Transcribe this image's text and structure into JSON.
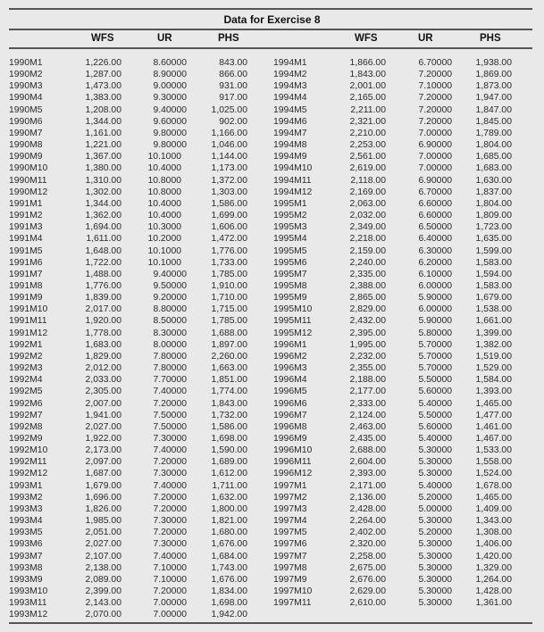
{
  "title": "Data for Exercise 8",
  "headers": [
    "WFS",
    "UR",
    "PHS"
  ],
  "left_rows": [
    [
      "1990M1",
      "1,226.00",
      "8.60000",
      "843.00"
    ],
    [
      "1990M2",
      "1,287.00",
      "8.90000",
      "866.00"
    ],
    [
      "1990M3",
      "1,473.00",
      "9.00000",
      "931.00"
    ],
    [
      "1990M4",
      "1,383.00",
      "9.30000",
      "917.00"
    ],
    [
      "1990M5",
      "1,208.00",
      "9.40000",
      "1,025.00"
    ],
    [
      "1990M6",
      "1,344.00",
      "9.60000",
      "902.00"
    ],
    [
      "1990M7",
      "1,161.00",
      "9.80000",
      "1,166.00"
    ],
    [
      "1990M8",
      "1,221.00",
      "9.80000",
      "1,046.00"
    ],
    [
      "1990M9",
      "1,367.00",
      "10.1000",
      "1,144.00"
    ],
    [
      "1990M10",
      "1,380.00",
      "10.4000",
      "1,173.00"
    ],
    [
      "1990M11",
      "1,310.00",
      "10.8000",
      "1,372.00"
    ],
    [
      "1990M12",
      "1,302.00",
      "10.8000",
      "1,303.00"
    ],
    [
      "1991M1",
      "1,344.00",
      "10.4000",
      "1,586.00"
    ],
    [
      "1991M2",
      "1,362.00",
      "10.4000",
      "1,699.00"
    ],
    [
      "1991M3",
      "1,694.00",
      "10.3000",
      "1,606.00"
    ],
    [
      "1991M4",
      "1,611.00",
      "10.2000",
      "1,472.00"
    ],
    [
      "1991M5",
      "1,648.00",
      "10.1000",
      "1,776.00"
    ],
    [
      "1991M6",
      "1,722.00",
      "10.1000",
      "1,733.00"
    ],
    [
      "1991M7",
      "1,488.00",
      "9.40000",
      "1,785.00"
    ],
    [
      "1991M8",
      "1,776.00",
      "9.50000",
      "1,910.00"
    ],
    [
      "1991M9",
      "1,839.00",
      "9.20000",
      "1,710.00"
    ],
    [
      "1991M10",
      "2,017.00",
      "8.80000",
      "1,715.00"
    ],
    [
      "1991M11",
      "1,920.00",
      "8.50000",
      "1,785.00"
    ],
    [
      "1991M12",
      "1,778.00",
      "8.30000",
      "1,688.00"
    ],
    [
      "1992M1",
      "1,683.00",
      "8.00000",
      "1,897.00"
    ],
    [
      "1992M2",
      "1,829.00",
      "7.80000",
      "2,260.00"
    ],
    [
      "1992M3",
      "2,012.00",
      "7.80000",
      "1,663.00"
    ],
    [
      "1992M4",
      "2,033.00",
      "7.70000",
      "1,851.00"
    ],
    [
      "1992M5",
      "2,305.00",
      "7.40000",
      "1,774.00"
    ],
    [
      "1992M6",
      "2,007.00",
      "7.20000",
      "1,843.00"
    ],
    [
      "1992M7",
      "1,941.00",
      "7.50000",
      "1,732.00"
    ],
    [
      "1992M8",
      "2,027.00",
      "7.50000",
      "1,586.00"
    ],
    [
      "1992M9",
      "1,922.00",
      "7.30000",
      "1,698.00"
    ],
    [
      "1992M10",
      "2,173.00",
      "7.40000",
      "1,590.00"
    ],
    [
      "1992M11",
      "2,097.00",
      "7.20000",
      "1,689.00"
    ],
    [
      "1992M12",
      "1,687.00",
      "7.30000",
      "1,612.00"
    ],
    [
      "1993M1",
      "1,679.00",
      "7.40000",
      "1,711.00"
    ],
    [
      "1993M2",
      "1,696.00",
      "7.20000",
      "1,632.00"
    ],
    [
      "1993M3",
      "1,826.00",
      "7.20000",
      "1,800.00"
    ],
    [
      "1993M4",
      "1,985.00",
      "7.30000",
      "1,821.00"
    ],
    [
      "1993M5",
      "2,051.00",
      "7.20000",
      "1,680.00"
    ],
    [
      "1993M6",
      "2,027.00",
      "7.30000",
      "1,676.00"
    ],
    [
      "1993M7",
      "2,107.00",
      "7.40000",
      "1,684.00"
    ],
    [
      "1993M8",
      "2,138.00",
      "7.10000",
      "1,743.00"
    ],
    [
      "1993M9",
      "2,089.00",
      "7.10000",
      "1,676.00"
    ],
    [
      "1993M10",
      "2,399.00",
      "7.20000",
      "1,834.00"
    ],
    [
      "1993M11",
      "2,143.00",
      "7.00000",
      "1,698.00"
    ],
    [
      "1993M12",
      "2,070.00",
      "7.00000",
      "1,942.00"
    ]
  ],
  "right_rows": [
    [
      "1994M1",
      "1,866.00",
      "6.70000",
      "1,938.00"
    ],
    [
      "1994M2",
      "1,843.00",
      "7.20000",
      "1,869.00"
    ],
    [
      "1994M3",
      "2,001.00",
      "7.10000",
      "1,873.00"
    ],
    [
      "1994M4",
      "2,165.00",
      "7.20000",
      "1,947.00"
    ],
    [
      "1994M5",
      "2,211.00",
      "7.20000",
      "1,847.00"
    ],
    [
      "1994M6",
      "2,321.00",
      "7.20000",
      "1,845.00"
    ],
    [
      "1994M7",
      "2,210.00",
      "7.00000",
      "1,789.00"
    ],
    [
      "1994M8",
      "2,253.00",
      "6.90000",
      "1,804.00"
    ],
    [
      "1994M9",
      "2,561.00",
      "7.00000",
      "1,685.00"
    ],
    [
      "1994M10",
      "2,619.00",
      "7.00000",
      "1,683.00"
    ],
    [
      "1994M11",
      "2,118.00",
      "6.90000",
      "1,630.00"
    ],
    [
      "1994M12",
      "2,169.00",
      "6.70000",
      "1,837.00"
    ],
    [
      "1995M1",
      "2,063.00",
      "6.60000",
      "1,804.00"
    ],
    [
      "1995M2",
      "2,032.00",
      "6.60000",
      "1,809.00"
    ],
    [
      "1995M3",
      "2,349.00",
      "6.50000",
      "1,723.00"
    ],
    [
      "1995M4",
      "2,218.00",
      "6.40000",
      "1,635.00"
    ],
    [
      "1995M5",
      "2,159.00",
      "6.30000",
      "1,599.00"
    ],
    [
      "1995M6",
      "2,240.00",
      "6.20000",
      "1,583.00"
    ],
    [
      "1995M7",
      "2,335.00",
      "6.10000",
      "1,594.00"
    ],
    [
      "1995M8",
      "2,388.00",
      "6.00000",
      "1,583.00"
    ],
    [
      "1995M9",
      "2,865.00",
      "5.90000",
      "1,679.00"
    ],
    [
      "1995M10",
      "2,829.00",
      "6.00000",
      "1,538.00"
    ],
    [
      "1995M11",
      "2,432.00",
      "5.90000",
      "1,661.00"
    ],
    [
      "1995M12",
      "2,395.00",
      "5.80000",
      "1,399.00"
    ],
    [
      "1996M1",
      "1,995.00",
      "5.70000",
      "1,382.00"
    ],
    [
      "1996M2",
      "2,232.00",
      "5.70000",
      "1,519.00"
    ],
    [
      "1996M3",
      "2,355.00",
      "5.70000",
      "1,529.00"
    ],
    [
      "1996M4",
      "2,188.00",
      "5.50000",
      "1,584.00"
    ],
    [
      "1996M5",
      "2,177.00",
      "5.60000",
      "1,393.00"
    ],
    [
      "1996M6",
      "2,333.00",
      "5.40000",
      "1,465.00"
    ],
    [
      "1996M7",
      "2,124.00",
      "5.50000",
      "1,477.00"
    ],
    [
      "1996M8",
      "2,463.00",
      "5.60000",
      "1,461.00"
    ],
    [
      "1996M9",
      "2,435.00",
      "5.40000",
      "1,467.00"
    ],
    [
      "1996M10",
      "2,688.00",
      "5.30000",
      "1,533.00"
    ],
    [
      "1996M11",
      "2,604.00",
      "5.30000",
      "1,558.00"
    ],
    [
      "1996M12",
      "2,393.00",
      "5.30000",
      "1,524.00"
    ],
    [
      "1997M1",
      "2,171.00",
      "5.40000",
      "1,678.00"
    ],
    [
      "1997M2",
      "2,136.00",
      "5.20000",
      "1,465.00"
    ],
    [
      "1997M3",
      "2,428.00",
      "5.00000",
      "1,409.00"
    ],
    [
      "1997M4",
      "2,264.00",
      "5.30000",
      "1,343.00"
    ],
    [
      "1997M5",
      "2,402.00",
      "5.20000",
      "1,308.00"
    ],
    [
      "1997M6",
      "2,320.00",
      "5.30000",
      "1,406.00"
    ],
    [
      "1997M7",
      "2,258.00",
      "5.30000",
      "1,420.00"
    ],
    [
      "1997M8",
      "2,675.00",
      "5.30000",
      "1,329.00"
    ],
    [
      "1997M9",
      "2,676.00",
      "5.30000",
      "1,264.00"
    ],
    [
      "1997M10",
      "2,629.00",
      "5.30000",
      "1,428.00"
    ],
    [
      "1997M11",
      "2,610.00",
      "5.30000",
      "1,361.00"
    ]
  ]
}
